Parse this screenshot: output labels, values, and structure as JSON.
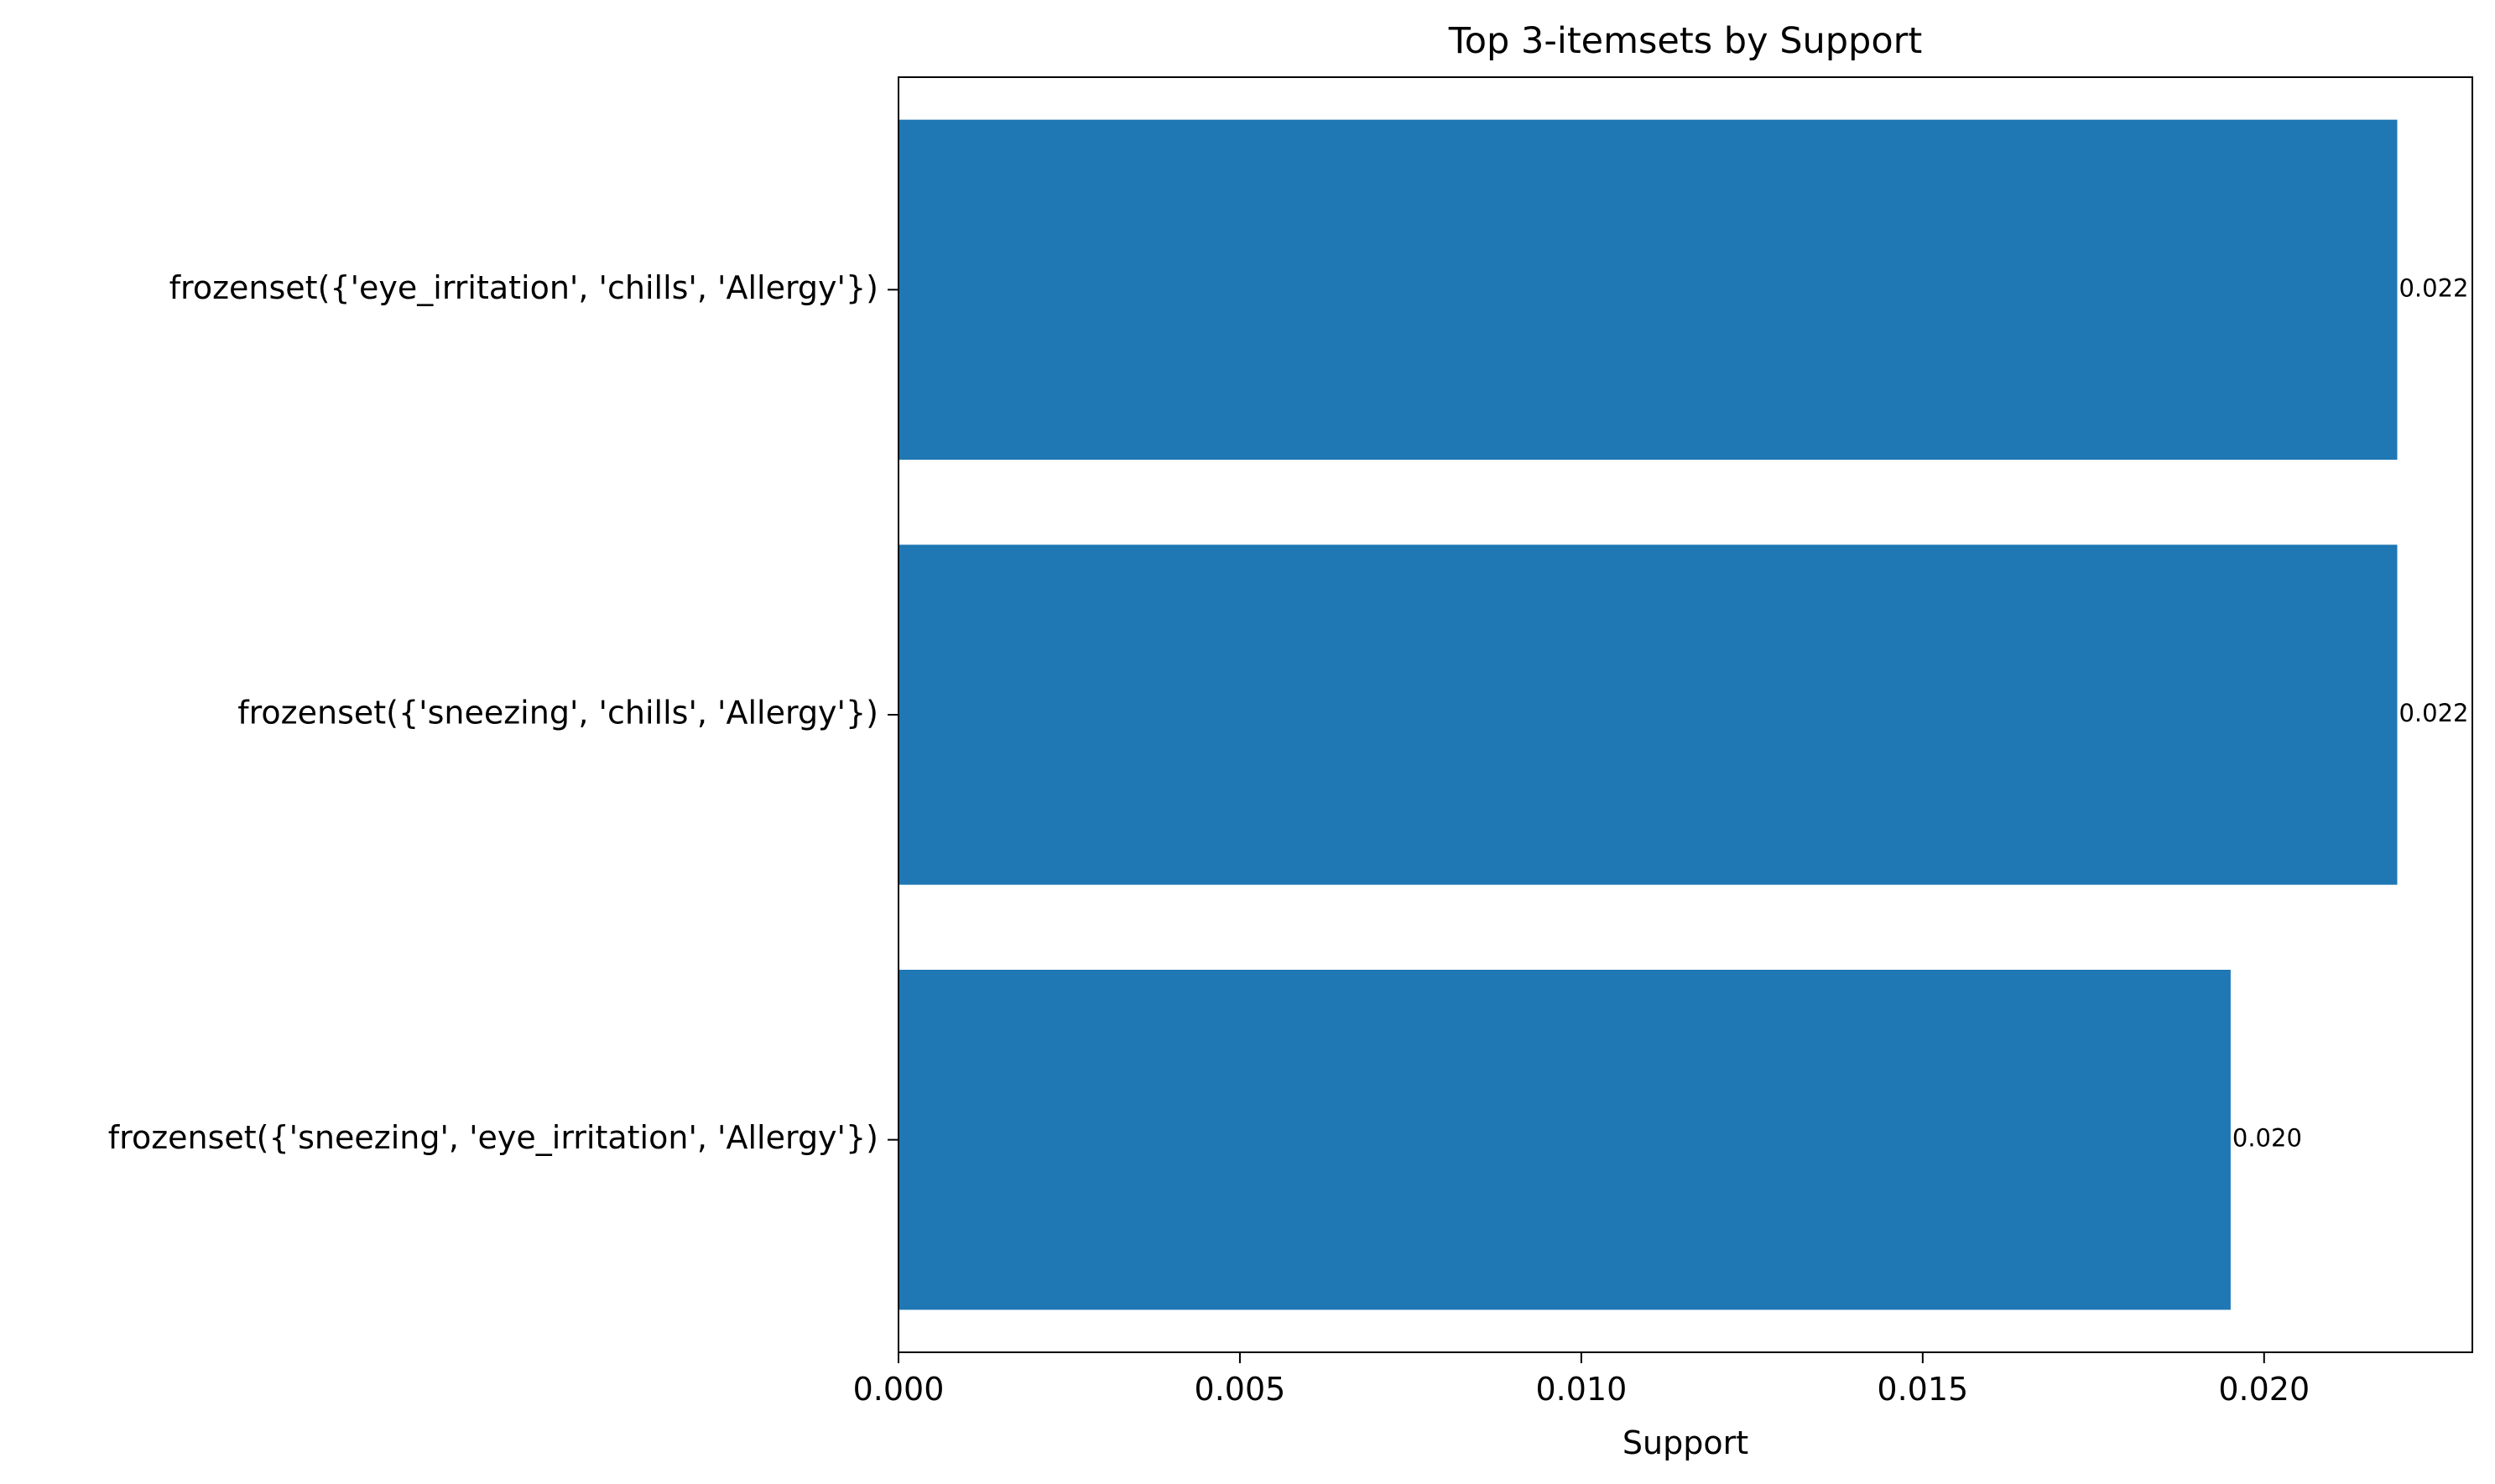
{
  "chart_data": {
    "type": "bar",
    "orientation": "horizontal",
    "title": "Top 3-itemsets by Support",
    "xlabel": "Support",
    "ylabel": "",
    "categories": [
      "frozenset({'eye_irritation', 'chills', 'Allergy'})",
      "frozenset({'sneezing', 'chills', 'Allergy'})",
      "frozenset({'sneezing', 'eye_irritation', 'Allergy'})"
    ],
    "values": [
      0.02195,
      0.02195,
      0.01951
    ],
    "value_labels": [
      "0.022",
      "0.022",
      "0.020"
    ],
    "xlim": [
      0,
      0.02305
    ],
    "xticks": [
      0.0,
      0.005,
      0.01,
      0.015,
      0.02
    ],
    "xtick_labels": [
      "0.000",
      "0.005",
      "0.010",
      "0.015",
      "0.020"
    ],
    "grid": false,
    "bar_color": "#1f77b4"
  }
}
